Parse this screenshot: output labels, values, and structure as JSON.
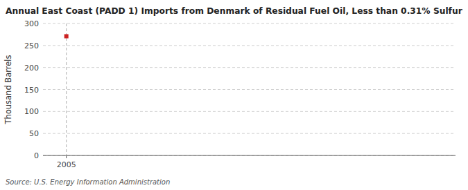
{
  "chart_data": {
    "type": "scatter",
    "title": "Annual East Coast (PADD 1) Imports from Denmark of Residual Fuel Oil, Less than 0.31% Sulfur",
    "y_label": "Thousand Barrels",
    "source": "Source: U.S. Energy Information Administration",
    "x": [
      2005
    ],
    "values": [
      271
    ],
    "color": "#cc2222",
    "marker": "square",
    "vlines": [
      2005
    ],
    "xlim": [
      2004.4,
      2015.0
    ],
    "ylim": [
      0,
      300
    ],
    "xticks": [
      2005
    ],
    "yticks": [
      0,
      50,
      100,
      150,
      200,
      250,
      300
    ],
    "grid": "y"
  }
}
